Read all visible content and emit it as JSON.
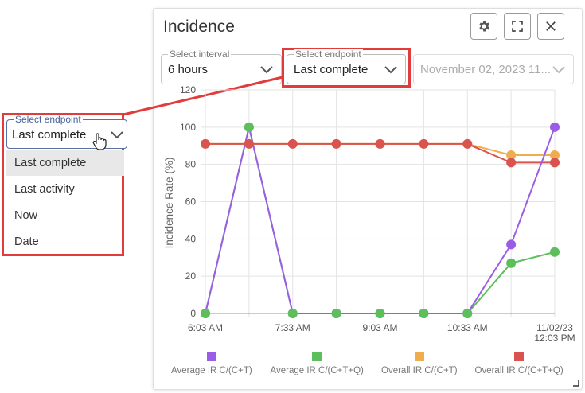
{
  "panel": {
    "title": "Incidence",
    "settings_icon": "gear-icon",
    "fullscreen_icon": "fullscreen-icon",
    "close_icon": "close-icon"
  },
  "interval": {
    "label": "Select interval",
    "value": "6 hours"
  },
  "endpoint": {
    "label": "Select endpoint",
    "value": "Last complete"
  },
  "date": {
    "value": "November 02, 2023 11..."
  },
  "dropdown": {
    "label": "Select endpoint",
    "value": "Last complete",
    "options": [
      "Last complete",
      "Last activity",
      "Now",
      "Date"
    ],
    "selected_index": 0
  },
  "colors": {
    "highlight": "#e23b3b",
    "series": [
      "#9b5de5",
      "#5cbf5c",
      "#f0ad4e",
      "#d9534f"
    ]
  },
  "chart_data": {
    "type": "line",
    "ylabel": "Incidence Rate (%)",
    "xlabel": "",
    "ylim": [
      0,
      120
    ],
    "yticks": [
      0,
      20,
      40,
      60,
      80,
      100,
      120
    ],
    "x_tick_labels": [
      "6:03 AM",
      "7:33 AM",
      "9:03 AM",
      "10:33 AM",
      "11/02/23\n12:03 PM"
    ],
    "x_tick_positions": [
      0,
      2,
      4,
      6,
      8
    ],
    "x": [
      0,
      1,
      2,
      3,
      4,
      5,
      6,
      7,
      8
    ],
    "grid": true,
    "legend_position": "bottom",
    "series": [
      {
        "name": "Average IR C/(C+T)",
        "color": "#9b5de5",
        "values": [
          0,
          100,
          0,
          0,
          0,
          0,
          0,
          37,
          100
        ]
      },
      {
        "name": "Average IR C/(C+T+Q)",
        "color": "#5cbf5c",
        "values": [
          0,
          100,
          0,
          0,
          0,
          0,
          0,
          27,
          33
        ]
      },
      {
        "name": "Overall IR C/(C+T)",
        "color": "#f0ad4e",
        "values": [
          91,
          91,
          91,
          91,
          91,
          91,
          91,
          85,
          85
        ]
      },
      {
        "name": "Overall IR C/(C+T+Q)",
        "color": "#d9534f",
        "values": [
          91,
          91,
          91,
          91,
          91,
          91,
          91,
          81,
          81
        ]
      }
    ]
  }
}
